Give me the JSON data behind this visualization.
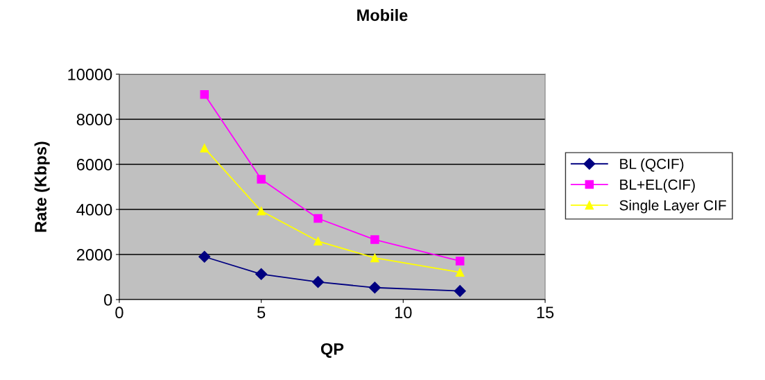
{
  "chart_data": {
    "type": "line",
    "title": "Mobile",
    "xlabel": "QP",
    "ylabel": "Rate (Kbps)",
    "x": [
      3,
      5,
      7,
      9,
      12
    ],
    "series": [
      {
        "name": "BL (QCIF)",
        "color": "#000080",
        "marker": "diamond",
        "values": [
          1900,
          1130,
          780,
          530,
          380
        ]
      },
      {
        "name": "BL+EL(CIF)",
        "color": "#ff00ff",
        "marker": "square",
        "values": [
          9100,
          5340,
          3600,
          2660,
          1710
        ]
      },
      {
        "name": "Single Layer CIF",
        "color": "#ffff00",
        "marker": "triangle",
        "values": [
          6720,
          3930,
          2590,
          1850,
          1210
        ]
      }
    ],
    "xlim": [
      0,
      15
    ],
    "xticks": [
      0,
      5,
      10,
      15
    ],
    "ylim": [
      0,
      10000
    ],
    "yticks": [
      0,
      2000,
      4000,
      6000,
      8000,
      10000
    ],
    "grid": "y",
    "legend": "right",
    "line_style": "solid"
  }
}
